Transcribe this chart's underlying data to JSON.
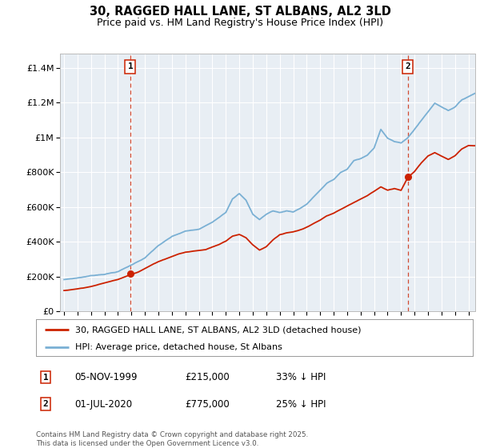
{
  "title": "30, RAGGED HALL LANE, ST ALBANS, AL2 3LD",
  "subtitle": "Price paid vs. HM Land Registry's House Price Index (HPI)",
  "ylabel_ticks": [
    "£0",
    "£200K",
    "£400K",
    "£600K",
    "£800K",
    "£1M",
    "£1.2M",
    "£1.4M"
  ],
  "ytick_vals": [
    0,
    200000,
    400000,
    600000,
    800000,
    1000000,
    1200000,
    1400000
  ],
  "ylim": [
    0,
    1480000
  ],
  "xlim_start": 1994.7,
  "xlim_end": 2025.5,
  "red_color": "#cc2200",
  "blue_color": "#7ab0d4",
  "bg_color": "#ffffff",
  "chart_bg": "#e8eef4",
  "grid_color": "#ffffff",
  "sale1_x": 1999.92,
  "sale1_y": 215000,
  "sale2_x": 2020.5,
  "sale2_y": 775000,
  "legend_line1": "30, RAGGED HALL LANE, ST ALBANS, AL2 3LD (detached house)",
  "legend_line2": "HPI: Average price, detached house, St Albans",
  "footnote": "Contains HM Land Registry data © Crown copyright and database right 2025.\nThis data is licensed under the Open Government Licence v3.0.",
  "title_fontsize": 10.5,
  "subtitle_fontsize": 9,
  "tick_fontsize": 8,
  "legend_fontsize": 8,
  "annot_fontsize": 8.5
}
